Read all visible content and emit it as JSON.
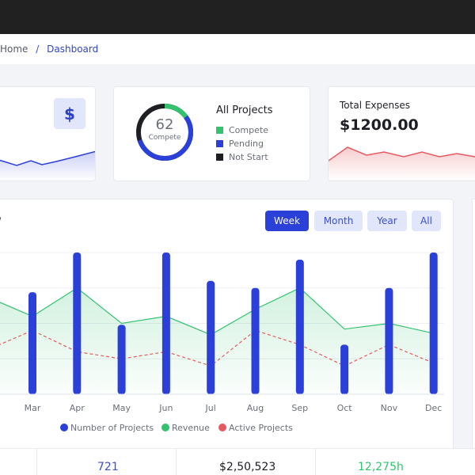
{
  "breadcrumb": {
    "home": "Home",
    "separator": "/",
    "current": "Dashboard"
  },
  "card_revenue": {
    "icon": "dollar-icon",
    "icon_glyph": "$"
  },
  "card_projects": {
    "title": "All Projects",
    "donut_value": "62",
    "donut_label": "Compete",
    "legend": [
      {
        "label": "Compete",
        "color": "#34c26f"
      },
      {
        "label": "Pending",
        "color": "#2b40d9"
      },
      {
        "label": "Not Start",
        "color": "#1d1f25"
      }
    ]
  },
  "card_expenses": {
    "title": "Total Expenses",
    "value": "$1200.00"
  },
  "overview": {
    "title": "w",
    "filters": [
      "Week",
      "Month",
      "Year",
      "All"
    ],
    "active_filter": "Week"
  },
  "chart_data": {
    "type": "bar",
    "categories": [
      "Mar",
      "Apr",
      "May",
      "Jun",
      "Jul",
      "Aug",
      "Sep",
      "Oct",
      "Nov",
      "Dec"
    ],
    "ylim": [
      0,
      100
    ],
    "grid": true,
    "legend_position": "bottom",
    "series": [
      {
        "name": "Number of Projects",
        "type": "bar",
        "color": "#2b40d9",
        "values": [
          72,
          100,
          49,
          100,
          80,
          75,
          95,
          35,
          75,
          100
        ]
      },
      {
        "name": "Revenue",
        "type": "area",
        "color": "#34c26f",
        "values": [
          55,
          75,
          50,
          55,
          42,
          60,
          75,
          46,
          50,
          43
        ]
      },
      {
        "name": "Active Projects",
        "type": "line",
        "style": "dashed",
        "color": "#e8595f",
        "values": [
          45,
          30,
          25,
          30,
          20,
          45,
          35,
          20,
          35,
          22
        ]
      }
    ]
  },
  "bottom_stats": [
    {
      "value": "",
      "color": "#3b4fc9"
    },
    {
      "value": "721",
      "color": "#3b4fc9"
    },
    {
      "value": "$2,50,523",
      "color": "#1d1f25"
    },
    {
      "value": "12,275h",
      "color": "#34c26f"
    }
  ]
}
